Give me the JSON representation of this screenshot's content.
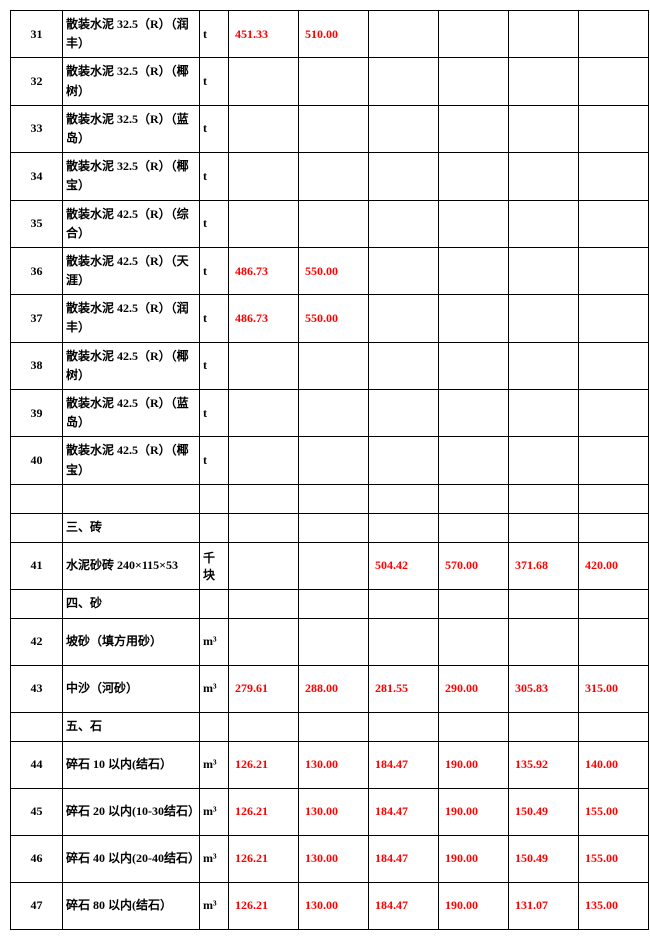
{
  "rows": [
    {
      "idx": "31",
      "name": "散装水泥 32.5（R）（润丰）",
      "unit": "t",
      "v": [
        "451.33",
        "510.00",
        "",
        "",
        "",
        ""
      ]
    },
    {
      "idx": "32",
      "name": "散装水泥 32.5（R）（椰树）",
      "unit": "t",
      "v": [
        "",
        "",
        "",
        "",
        "",
        ""
      ]
    },
    {
      "idx": "33",
      "name": "散装水泥 32.5（R）（蓝岛）",
      "unit": "t",
      "v": [
        "",
        "",
        "",
        "",
        "",
        ""
      ]
    },
    {
      "idx": "34",
      "name": "散装水泥 32.5（R）（椰宝）",
      "unit": "t",
      "v": [
        "",
        "",
        "",
        "",
        "",
        ""
      ]
    },
    {
      "idx": "35",
      "name": "散装水泥 42.5（R）（综合）",
      "unit": "t",
      "v": [
        "",
        "",
        "",
        "",
        "",
        ""
      ]
    },
    {
      "idx": "36",
      "name": "散装水泥 42.5（R）（天涯）",
      "unit": "t",
      "v": [
        "486.73",
        "550.00",
        "",
        "",
        "",
        ""
      ]
    },
    {
      "idx": "37",
      "name": "散装水泥 42.5（R）（润丰）",
      "unit": "t",
      "v": [
        "486.73",
        "550.00",
        "",
        "",
        "",
        ""
      ]
    },
    {
      "idx": "38",
      "name": "散装水泥 42.5（R）（椰树）",
      "unit": "t",
      "v": [
        "",
        "",
        "",
        "",
        "",
        ""
      ]
    },
    {
      "idx": "39",
      "name": "散装水泥 42.5（R）（蓝岛）",
      "unit": "t",
      "v": [
        "",
        "",
        "",
        "",
        "",
        ""
      ]
    },
    {
      "idx": "40",
      "name": "散装水泥 42.5（R）（椰宝）",
      "unit": "t",
      "v": [
        "",
        "",
        "",
        "",
        "",
        ""
      ]
    },
    {
      "idx": "",
      "name": "",
      "unit": "",
      "v": [
        "",
        "",
        "",
        "",
        "",
        ""
      ],
      "short": true
    },
    {
      "idx": "",
      "name": "三、砖",
      "unit": "",
      "v": [
        "",
        "",
        "",
        "",
        "",
        ""
      ],
      "short": true
    },
    {
      "idx": "41",
      "name": "水泥砂砖 240×115×53",
      "unit": "千块",
      "v": [
        "",
        "",
        "504.42",
        "570.00",
        "371.68",
        "420.00"
      ]
    },
    {
      "idx": "",
      "name": "四、砂",
      "unit": "",
      "v": [
        "",
        "",
        "",
        "",
        "",
        ""
      ],
      "short": true
    },
    {
      "idx": "42",
      "name": "坡砂（填方用砂）",
      "unit": "m³",
      "v": [
        "",
        "",
        "",
        "",
        "",
        ""
      ]
    },
    {
      "idx": "43",
      "name": "中沙（河砂）",
      "unit": "m³",
      "v": [
        "279.61",
        "288.00",
        "281.55",
        "290.00",
        "305.83",
        "315.00"
      ]
    },
    {
      "idx": "",
      "name": "五、石",
      "unit": "",
      "v": [
        "",
        "",
        "",
        "",
        "",
        ""
      ],
      "short": true
    },
    {
      "idx": "44",
      "name": "碎石 10 以内(结石）",
      "unit": "m³",
      "v": [
        "126.21",
        "130.00",
        "184.47",
        "190.00",
        "135.92",
        "140.00"
      ]
    },
    {
      "idx": "45",
      "name": "碎石 20 以内(10-30结石）",
      "unit": "m³",
      "v": [
        "126.21",
        "130.00",
        "184.47",
        "190.00",
        "150.49",
        "155.00"
      ]
    },
    {
      "idx": "46",
      "name": "碎石 40 以内(20-40结石）",
      "unit": "m³",
      "v": [
        "126.21",
        "130.00",
        "184.47",
        "190.00",
        "150.49",
        "155.00"
      ]
    },
    {
      "idx": "47",
      "name": "碎石 80 以内(结石）",
      "unit": "m³",
      "v": [
        "126.21",
        "130.00",
        "184.47",
        "190.00",
        "131.07",
        "135.00"
      ]
    }
  ],
  "colors": {
    "text": "#000000",
    "value": "#ff0000",
    "border": "#000000",
    "bg": "#ffffff"
  }
}
